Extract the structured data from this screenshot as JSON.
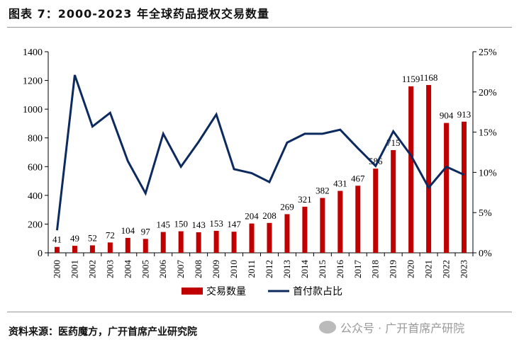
{
  "title": "图表 7：2000-2023 年全球药品授权交易数量",
  "source": "资料来源：医药魔方，广开首席产业研究院",
  "watermark": "公众号 · 广开首席产研院",
  "chart_data": {
    "type": "bar+line",
    "categories": [
      "2000",
      "2001",
      "2002",
      "2003",
      "2004",
      "2005",
      "2006",
      "2007",
      "2008",
      "2009",
      "2010",
      "2011",
      "2012",
      "2013",
      "2014",
      "2015",
      "2016",
      "2017",
      "2018",
      "2019",
      "2020",
      "2021",
      "2022",
      "2023"
    ],
    "series": [
      {
        "name": "交易数量",
        "type": "bar",
        "axis": "left",
        "color": "#C00000",
        "values": [
          41,
          49,
          52,
          72,
          104,
          97,
          145,
          150,
          143,
          153,
          147,
          204,
          208,
          269,
          321,
          382,
          431,
          467,
          586,
          715,
          1159,
          1168,
          904,
          913
        ]
      },
      {
        "name": "首付款占比",
        "type": "line",
        "axis": "right",
        "color": "#0C2A5E",
        "values": [
          2.8,
          22.1,
          15.7,
          17.4,
          11.4,
          7.4,
          14.8,
          10.7,
          13.8,
          17.2,
          10.4,
          9.9,
          8.8,
          13.7,
          14.8,
          14.8,
          15.3,
          13.0,
          10.8,
          15.1,
          12.1,
          8.1,
          10.7,
          9.7
        ]
      }
    ],
    "ylim_left": [
      0,
      1400
    ],
    "yticks_left": [
      0,
      200,
      400,
      600,
      800,
      1000,
      1200,
      1400
    ],
    "ylim_right": [
      0,
      25
    ],
    "yticks_right": [
      "0%",
      "5%",
      "10%",
      "15%",
      "20%",
      "25%"
    ],
    "legend": "bottom",
    "grid": false
  }
}
